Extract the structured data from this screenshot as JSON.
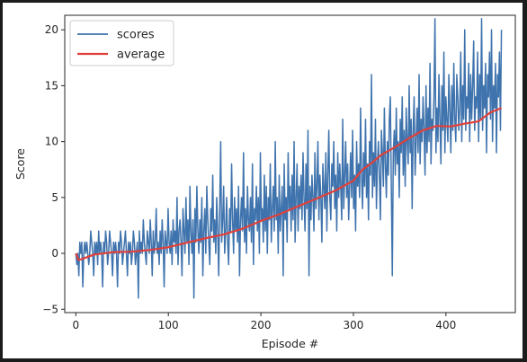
{
  "chart_data": {
    "type": "line",
    "title": "",
    "xlabel": "Episode #",
    "ylabel": "Score",
    "xlim": [
      -12,
      475
    ],
    "ylim": [
      -5.3,
      21.3
    ],
    "xticks": [
      0,
      100,
      200,
      300,
      400
    ],
    "yticks": [
      -5,
      0,
      5,
      10,
      15,
      20
    ],
    "grid": false,
    "legend_position": "top-left",
    "x_start": 0,
    "x_end": 460,
    "series": [
      {
        "name": "scores",
        "color": "#3f73ad",
        "values": [
          0,
          -1,
          0,
          -2,
          1,
          0,
          1,
          -3,
          0,
          1,
          0,
          1,
          0,
          -1,
          0,
          2,
          1,
          0,
          -2,
          1,
          0,
          1,
          -1,
          2,
          0,
          1,
          0,
          -3,
          1,
          0,
          2,
          1,
          -1,
          0,
          2,
          1,
          0,
          -2,
          1,
          0,
          1,
          0,
          -3,
          1,
          0,
          2,
          1,
          -1,
          0,
          1,
          2,
          0,
          -2,
          1,
          0,
          1,
          -1,
          0,
          2,
          1,
          -1,
          0,
          1,
          -4,
          2,
          0,
          1,
          0,
          3,
          1,
          0,
          -1,
          2,
          1,
          0,
          3,
          1,
          -2,
          2,
          0,
          1,
          4,
          0,
          1,
          -1,
          2,
          0,
          3,
          1,
          -3,
          2,
          1,
          0,
          4,
          1,
          0,
          2,
          -1,
          3,
          1,
          2,
          0,
          5,
          -1,
          2,
          3,
          1,
          -2,
          4,
          2,
          0,
          5,
          1,
          3,
          -1,
          6,
          2,
          0,
          3,
          -4,
          4,
          1,
          6,
          2,
          0,
          3,
          1,
          5,
          -2,
          2,
          4,
          0,
          6,
          3,
          1,
          -1,
          4,
          2,
          7,
          1,
          3,
          0,
          5,
          2,
          -2,
          4,
          10,
          1,
          3,
          6,
          0,
          2,
          5,
          1,
          -1,
          4,
          2,
          8,
          3,
          0,
          5,
          2,
          4,
          1,
          6,
          -2,
          3,
          5,
          2,
          9,
          1,
          4,
          0,
          6,
          3,
          2,
          5,
          1,
          8,
          -1,
          4,
          3,
          6,
          2,
          5,
          0,
          9,
          3,
          4,
          1,
          7,
          2,
          6,
          0,
          5,
          3,
          8,
          1,
          4,
          6,
          2,
          10,
          3,
          5,
          0,
          7,
          2,
          4,
          6,
          -2,
          8,
          3,
          5,
          1,
          9,
          4,
          6,
          2,
          7,
          3,
          10,
          1,
          5,
          8,
          2,
          6,
          4,
          7,
          3,
          9,
          5,
          2,
          8,
          4,
          11,
          -2,
          6,
          3,
          7,
          5,
          2,
          9,
          4,
          6,
          10,
          3,
          7,
          5,
          1,
          8,
          6,
          4,
          9,
          2,
          7,
          11,
          5,
          3,
          8,
          6,
          10,
          4,
          7,
          2,
          9,
          5,
          8,
          6,
          3,
          12,
          4,
          7,
          10,
          5,
          8,
          3,
          6,
          9,
          5,
          11,
          4,
          7,
          2,
          10,
          6,
          8,
          5,
          13,
          7,
          4,
          9,
          6,
          12,
          5,
          8,
          3,
          10,
          7,
          16,
          5,
          9,
          6,
          12,
          4,
          8,
          10,
          7,
          3,
          11,
          9,
          6,
          13,
          8,
          5,
          10,
          7,
          12,
          14,
          6,
          -2,
          9,
          11,
          7,
          13,
          8,
          10,
          5,
          12,
          9,
          14,
          7,
          11,
          6,
          13,
          10,
          8,
          15,
          9,
          12,
          4,
          11,
          14,
          7,
          10,
          13,
          9,
          16,
          8,
          12,
          10,
          14,
          11,
          7,
          15,
          9,
          13,
          10,
          17,
          8,
          12,
          11,
          14,
          21,
          9,
          13,
          10,
          16,
          12,
          8,
          15,
          11,
          18,
          9,
          14,
          12,
          10,
          16,
          13,
          9,
          15,
          11,
          17,
          12,
          10,
          16,
          14,
          11,
          13,
          18,
          10,
          15,
          12,
          20,
          11,
          14,
          13,
          17,
          10,
          16,
          12,
          15,
          19,
          11,
          14,
          13,
          18,
          10,
          16,
          12,
          21,
          11,
          15,
          13,
          17,
          9,
          16,
          14,
          18,
          12,
          20,
          10,
          15,
          13,
          17,
          9,
          16,
          14,
          18,
          11,
          20
        ]
      },
      {
        "name": "average",
        "color": "#e0403a",
        "anchors": [
          [
            0,
            0
          ],
          [
            3,
            -0.6
          ],
          [
            10,
            -0.4
          ],
          [
            20,
            -0.1
          ],
          [
            40,
            0.1
          ],
          [
            60,
            0.15
          ],
          [
            80,
            0.3
          ],
          [
            100,
            0.55
          ],
          [
            120,
            0.95
          ],
          [
            140,
            1.35
          ],
          [
            160,
            1.7
          ],
          [
            180,
            2.2
          ],
          [
            200,
            2.9
          ],
          [
            220,
            3.5
          ],
          [
            240,
            4.2
          ],
          [
            260,
            4.9
          ],
          [
            280,
            5.6
          ],
          [
            300,
            6.5
          ],
          [
            310,
            7.5
          ],
          [
            320,
            8.1
          ],
          [
            330,
            8.8
          ],
          [
            345,
            9.5
          ],
          [
            360,
            10.3
          ],
          [
            375,
            11.0
          ],
          [
            390,
            11.4
          ],
          [
            405,
            11.35
          ],
          [
            420,
            11.6
          ],
          [
            435,
            11.8
          ],
          [
            448,
            12.6
          ],
          [
            460,
            13.0
          ]
        ]
      }
    ]
  }
}
